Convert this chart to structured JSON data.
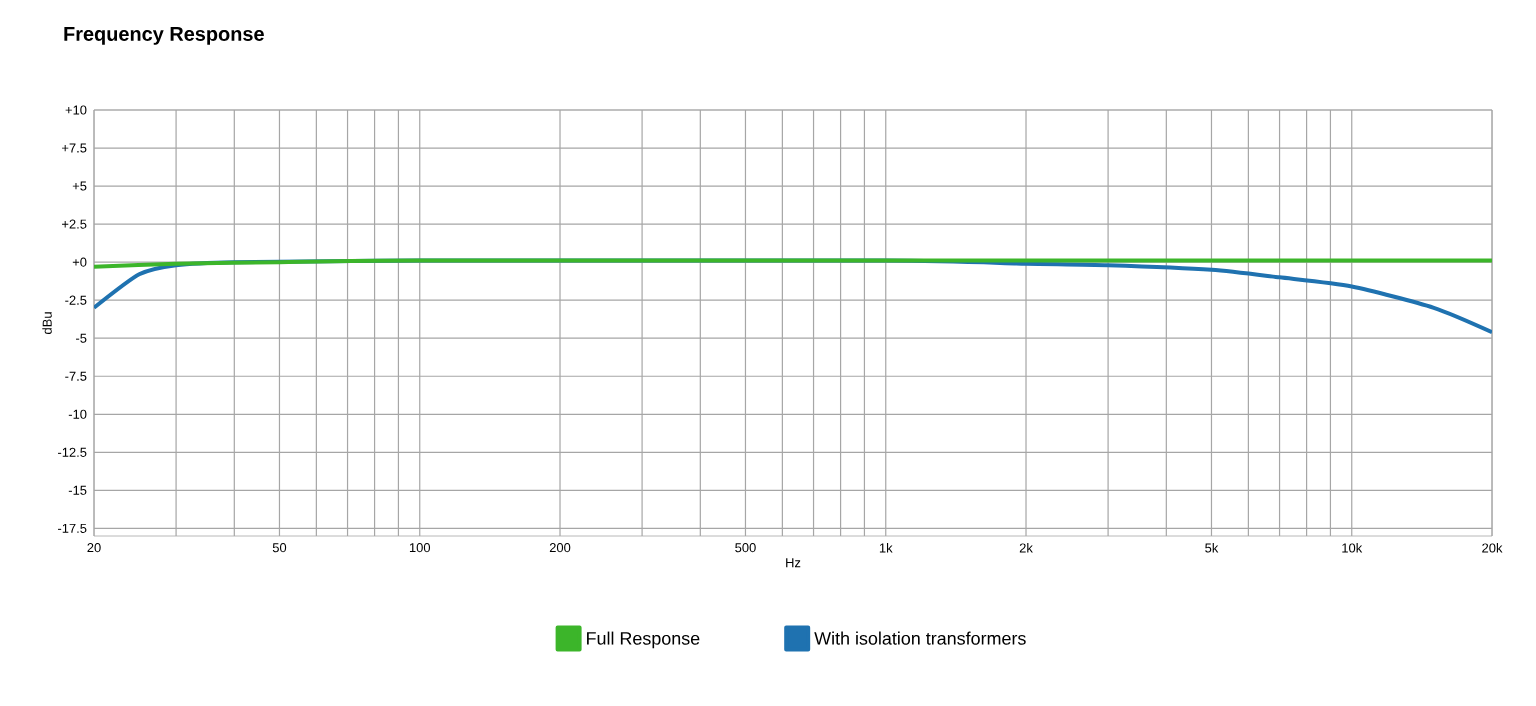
{
  "chart_data": {
    "type": "line",
    "title": "Frequency Response",
    "xlabel": "Hz",
    "ylabel": "dBu",
    "log": "x",
    "grid": true,
    "legend": "bottom",
    "marker": "none",
    "line_style": "solid",
    "xlim": [
      20,
      20000
    ],
    "ylim": [
      -18,
      10
    ],
    "xticks": [
      {
        "value": 20,
        "label": "20"
      },
      {
        "value": 30,
        "label": null
      },
      {
        "value": 40,
        "label": null
      },
      {
        "value": 50,
        "label": "50"
      },
      {
        "value": 60,
        "label": null
      },
      {
        "value": 70,
        "label": null
      },
      {
        "value": 80,
        "label": null
      },
      {
        "value": 90,
        "label": null
      },
      {
        "value": 100,
        "label": "100"
      },
      {
        "value": 200,
        "label": "200"
      },
      {
        "value": 300,
        "label": null
      },
      {
        "value": 400,
        "label": null
      },
      {
        "value": 500,
        "label": "500"
      },
      {
        "value": 600,
        "label": null
      },
      {
        "value": 700,
        "label": null
      },
      {
        "value": 800,
        "label": null
      },
      {
        "value": 900,
        "label": null
      },
      {
        "value": 1000,
        "label": "1k"
      },
      {
        "value": 2000,
        "label": "2k"
      },
      {
        "value": 3000,
        "label": null
      },
      {
        "value": 4000,
        "label": null
      },
      {
        "value": 5000,
        "label": "5k"
      },
      {
        "value": 6000,
        "label": null
      },
      {
        "value": 7000,
        "label": null
      },
      {
        "value": 8000,
        "label": null
      },
      {
        "value": 9000,
        "label": null
      },
      {
        "value": 10000,
        "label": "10k"
      },
      {
        "value": 20000,
        "label": "20k"
      }
    ],
    "yticks": [
      {
        "value": 10,
        "label": "+10"
      },
      {
        "value": 7.5,
        "label": "+7.5"
      },
      {
        "value": 5,
        "label": "+5"
      },
      {
        "value": 2.5,
        "label": "+2.5"
      },
      {
        "value": 0,
        "label": "+0"
      },
      -2.5,
      -5,
      -7.5,
      -10,
      -12.5,
      -15,
      -17.5
    ],
    "series": [
      {
        "name": "Full Response",
        "color": "#3cb52a",
        "x": [
          20,
          30,
          50,
          100,
          1000,
          10000,
          20000
        ],
        "values": [
          -0.3,
          -0.1,
          0,
          0.1,
          0.1,
          0.1,
          0.1
        ]
      },
      {
        "name": "With isolation transformers",
        "color": "#1f72b0",
        "x": [
          20,
          25,
          30,
          40,
          100,
          1000,
          2000,
          3000,
          5000,
          7000,
          10000,
          15000,
          20000
        ],
        "values": [
          -3.0,
          -0.8,
          -0.2,
          0,
          0.1,
          0.1,
          -0.1,
          -0.2,
          -0.5,
          -1.0,
          -1.6,
          -3.0,
          -4.6
        ]
      }
    ]
  }
}
